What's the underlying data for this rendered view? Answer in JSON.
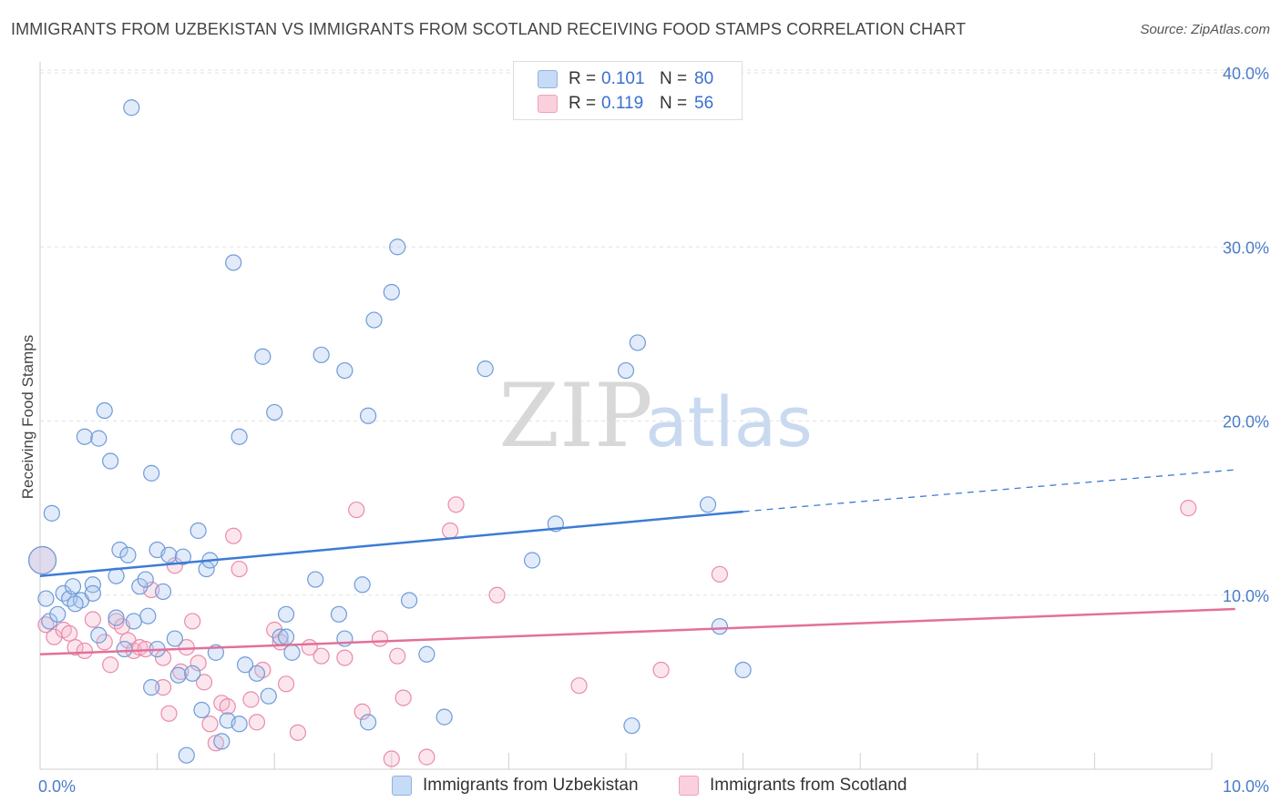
{
  "header": {
    "title": "IMMIGRANTS FROM UZBEKISTAN VS IMMIGRANTS FROM SCOTLAND RECEIVING FOOD STAMPS CORRELATION CHART",
    "source": "Source: ZipAtlas.com"
  },
  "watermark": {
    "zip": "ZIP",
    "atlas": "atlas"
  },
  "legend": {
    "rows": [
      {
        "r_label": "R =",
        "r_value": "0.101",
        "n_label": "N =",
        "n_value": "80",
        "color": "#a9c6ee"
      },
      {
        "r_label": "R =",
        "r_value": "0.119",
        "n_label": "N =",
        "n_value": "56",
        "color": "#f6b8cb"
      }
    ]
  },
  "bottom_legend": {
    "items": [
      {
        "label": "Immigrants from Uzbekistan",
        "color": "#a9c6ee"
      },
      {
        "label": "Immigrants from Scotland",
        "color": "#f6b8cb"
      }
    ]
  },
  "chart_data": {
    "type": "scatter",
    "title": "IMMIGRANTS FROM UZBEKISTAN VS IMMIGRANTS FROM SCOTLAND RECEIVING FOOD STAMPS CORRELATION CHART",
    "xlabel": "",
    "ylabel": "Receiving Food Stamps",
    "xlim": [
      0,
      10
    ],
    "ylim": [
      0,
      40
    ],
    "x_tick_labels": [
      "0.0%",
      "10.0%"
    ],
    "y_ticks": [
      10,
      20,
      30,
      40
    ],
    "y_tick_labels": [
      "10.0%",
      "20.0%",
      "30.0%",
      "40.0%"
    ],
    "grid": true,
    "legend_position": "top-center",
    "colors": {
      "uzbekistan": "#3d7bd6",
      "scotland": "#e2709a"
    },
    "series": [
      {
        "name": "Immigrants from Uzbekistan",
        "trend": {
          "x": [
            0,
            6
          ],
          "y": [
            11.1,
            14.8
          ],
          "dashed_to_x": 10.2,
          "dashed_to_y": 17.2
        },
        "points": [
          {
            "x": 0.02,
            "y": 12.0,
            "big": true
          },
          {
            "x": 0.05,
            "y": 9.8
          },
          {
            "x": 0.08,
            "y": 8.5
          },
          {
            "x": 0.1,
            "y": 14.7
          },
          {
            "x": 0.15,
            "y": 8.9
          },
          {
            "x": 0.2,
            "y": 10.1
          },
          {
            "x": 0.25,
            "y": 9.8
          },
          {
            "x": 0.28,
            "y": 10.5
          },
          {
            "x": 0.35,
            "y": 9.7
          },
          {
            "x": 0.38,
            "y": 19.1
          },
          {
            "x": 0.45,
            "y": 10.6
          },
          {
            "x": 0.5,
            "y": 7.7
          },
          {
            "x": 0.55,
            "y": 20.6
          },
          {
            "x": 0.5,
            "y": 19.0
          },
          {
            "x": 0.6,
            "y": 17.7
          },
          {
            "x": 0.65,
            "y": 11.1
          },
          {
            "x": 0.68,
            "y": 12.6
          },
          {
            "x": 0.72,
            "y": 6.9
          },
          {
            "x": 0.75,
            "y": 12.3
          },
          {
            "x": 0.65,
            "y": 8.7
          },
          {
            "x": 0.8,
            "y": 8.5
          },
          {
            "x": 0.78,
            "y": 38.0
          },
          {
            "x": 0.85,
            "y": 10.5
          },
          {
            "x": 0.9,
            "y": 10.9
          },
          {
            "x": 0.92,
            "y": 8.8
          },
          {
            "x": 0.95,
            "y": 17.0
          },
          {
            "x": 1.0,
            "y": 12.6
          },
          {
            "x": 1.05,
            "y": 10.2
          },
          {
            "x": 0.95,
            "y": 4.7
          },
          {
            "x": 1.1,
            "y": 12.3
          },
          {
            "x": 1.15,
            "y": 7.5
          },
          {
            "x": 1.18,
            "y": 5.4
          },
          {
            "x": 1.22,
            "y": 12.2
          },
          {
            "x": 1.25,
            "y": 0.8
          },
          {
            "x": 1.3,
            "y": 5.5
          },
          {
            "x": 1.35,
            "y": 13.7
          },
          {
            "x": 1.38,
            "y": 3.4
          },
          {
            "x": 1.42,
            "y": 11.5
          },
          {
            "x": 1.45,
            "y": 12.0
          },
          {
            "x": 1.5,
            "y": 6.7
          },
          {
            "x": 1.55,
            "y": 1.6
          },
          {
            "x": 1.6,
            "y": 2.8
          },
          {
            "x": 1.65,
            "y": 29.1
          },
          {
            "x": 1.7,
            "y": 2.6
          },
          {
            "x": 1.7,
            "y": 19.1
          },
          {
            "x": 1.75,
            "y": 6.0
          },
          {
            "x": 1.85,
            "y": 5.5
          },
          {
            "x": 1.9,
            "y": 23.7
          },
          {
            "x": 1.95,
            "y": 4.2
          },
          {
            "x": 2.0,
            "y": 20.5
          },
          {
            "x": 2.05,
            "y": 7.6
          },
          {
            "x": 2.1,
            "y": 8.9
          },
          {
            "x": 2.1,
            "y": 7.6
          },
          {
            "x": 2.15,
            "y": 6.7
          },
          {
            "x": 2.35,
            "y": 10.9
          },
          {
            "x": 2.4,
            "y": 23.8
          },
          {
            "x": 2.55,
            "y": 8.9
          },
          {
            "x": 2.6,
            "y": 7.5
          },
          {
            "x": 2.6,
            "y": 22.9
          },
          {
            "x": 2.75,
            "y": 10.6
          },
          {
            "x": 2.8,
            "y": 2.7
          },
          {
            "x": 2.8,
            "y": 20.3
          },
          {
            "x": 2.85,
            "y": 25.8
          },
          {
            "x": 3.0,
            "y": 27.4
          },
          {
            "x": 3.05,
            "y": 30.0
          },
          {
            "x": 3.15,
            "y": 9.7
          },
          {
            "x": 3.3,
            "y": 6.6
          },
          {
            "x": 3.45,
            "y": 3.0
          },
          {
            "x": 3.8,
            "y": 23.0
          },
          {
            "x": 4.2,
            "y": 12.0
          },
          {
            "x": 4.4,
            "y": 14.1
          },
          {
            "x": 5.0,
            "y": 22.9
          },
          {
            "x": 5.05,
            "y": 2.5
          },
          {
            "x": 5.1,
            "y": 24.5
          },
          {
            "x": 5.7,
            "y": 15.2
          },
          {
            "x": 5.8,
            "y": 8.2
          },
          {
            "x": 6.0,
            "y": 5.7
          },
          {
            "x": 0.45,
            "y": 10.1
          },
          {
            "x": 1.0,
            "y": 6.9
          },
          {
            "x": 0.3,
            "y": 9.5
          }
        ]
      },
      {
        "name": "Immigrants from Scotland",
        "trend": {
          "x": [
            0,
            10.2
          ],
          "y": [
            6.6,
            9.2
          ]
        },
        "points": [
          {
            "x": 0.02,
            "y": 12.0,
            "big": true
          },
          {
            "x": 0.05,
            "y": 8.3
          },
          {
            "x": 0.12,
            "y": 7.6
          },
          {
            "x": 0.2,
            "y": 8.0
          },
          {
            "x": 0.25,
            "y": 7.8
          },
          {
            "x": 0.3,
            "y": 7.0
          },
          {
            "x": 0.38,
            "y": 6.8
          },
          {
            "x": 0.45,
            "y": 8.6
          },
          {
            "x": 0.55,
            "y": 7.3
          },
          {
            "x": 0.6,
            "y": 6.0
          },
          {
            "x": 0.65,
            "y": 8.5
          },
          {
            "x": 0.7,
            "y": 8.2
          },
          {
            "x": 0.75,
            "y": 7.4
          },
          {
            "x": 0.8,
            "y": 6.8
          },
          {
            "x": 0.85,
            "y": 7.0
          },
          {
            "x": 0.9,
            "y": 6.9
          },
          {
            "x": 0.95,
            "y": 10.3
          },
          {
            "x": 1.05,
            "y": 6.4
          },
          {
            "x": 1.05,
            "y": 4.7
          },
          {
            "x": 1.1,
            "y": 3.2
          },
          {
            "x": 1.15,
            "y": 11.7
          },
          {
            "x": 1.2,
            "y": 5.6
          },
          {
            "x": 1.25,
            "y": 7.0
          },
          {
            "x": 1.3,
            "y": 8.5
          },
          {
            "x": 1.35,
            "y": 6.1
          },
          {
            "x": 1.4,
            "y": 5.0
          },
          {
            "x": 1.45,
            "y": 2.6
          },
          {
            "x": 1.5,
            "y": 1.5
          },
          {
            "x": 1.55,
            "y": 3.8
          },
          {
            "x": 1.6,
            "y": 3.6
          },
          {
            "x": 1.65,
            "y": 13.4
          },
          {
            "x": 1.7,
            "y": 11.5
          },
          {
            "x": 1.8,
            "y": 4.0
          },
          {
            "x": 1.85,
            "y": 2.7
          },
          {
            "x": 1.9,
            "y": 5.7
          },
          {
            "x": 2.0,
            "y": 8.0
          },
          {
            "x": 2.05,
            "y": 7.3
          },
          {
            "x": 2.1,
            "y": 4.9
          },
          {
            "x": 2.2,
            "y": 2.1
          },
          {
            "x": 2.3,
            "y": 7.0
          },
          {
            "x": 2.4,
            "y": 6.5
          },
          {
            "x": 2.6,
            "y": 6.4
          },
          {
            "x": 2.7,
            "y": 14.9
          },
          {
            "x": 2.75,
            "y": 3.3
          },
          {
            "x": 2.9,
            "y": 7.5
          },
          {
            "x": 3.0,
            "y": 0.6
          },
          {
            "x": 3.1,
            "y": 4.1
          },
          {
            "x": 3.05,
            "y": 6.5
          },
          {
            "x": 3.3,
            "y": 0.7
          },
          {
            "x": 3.5,
            "y": 13.7
          },
          {
            "x": 3.55,
            "y": 15.2
          },
          {
            "x": 3.9,
            "y": 10.0
          },
          {
            "x": 4.6,
            "y": 4.8
          },
          {
            "x": 5.3,
            "y": 5.7
          },
          {
            "x": 5.8,
            "y": 11.2
          },
          {
            "x": 9.8,
            "y": 15.0
          }
        ]
      }
    ]
  }
}
